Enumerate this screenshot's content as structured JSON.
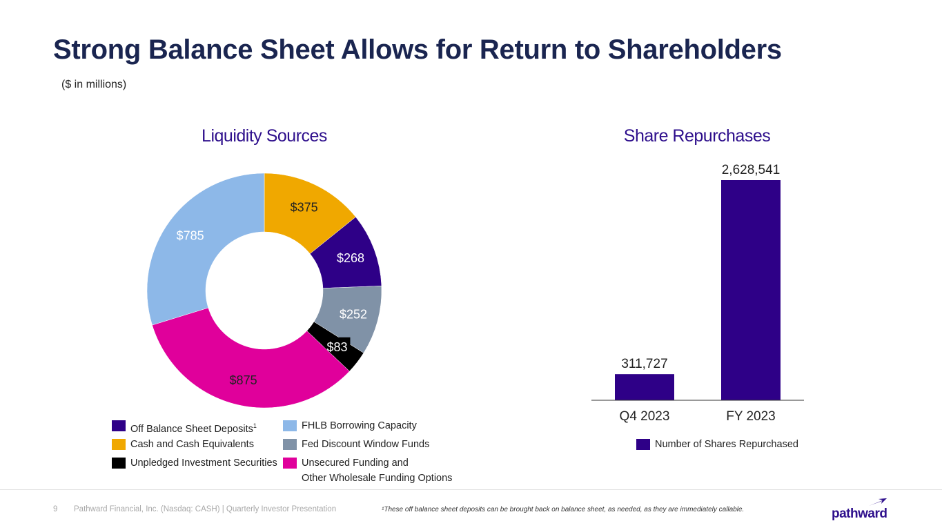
{
  "header": {
    "title": "Strong Balance Sheet Allows for Return to Shareholders",
    "subtitle": "($ in millions)"
  },
  "chart_data": [
    {
      "type": "pie",
      "variant": "donut",
      "title": "Liquidity Sources",
      "slices": [
        {
          "label": "Cash and Cash Equivalents",
          "value": 375,
          "display": "$375",
          "color": "#f0a800",
          "text_color": "#222222"
        },
        {
          "label": "Off Balance Sheet Deposits",
          "value": 268,
          "display": "$268",
          "color": "#2e0087",
          "text_color": "#ffffff"
        },
        {
          "label": "Fed Discount Window Funds",
          "value": 252,
          "display": "$252",
          "color": "#8092a7",
          "text_color": "#ffffff"
        },
        {
          "label": "Unpledged Investment Securities",
          "value": 83,
          "display": "$83",
          "color": "#000000",
          "text_color": "#ffffff"
        },
        {
          "label": "Unsecured Funding and Other Wholesale Funding Options",
          "value": 875,
          "display": "$875",
          "color": "#e0009b",
          "text_color": "#222222"
        },
        {
          "label": "FHLB Borrowing Capacity",
          "value": 785,
          "display": "$785",
          "color": "#8db8e8",
          "text_color": "#ffffff"
        }
      ],
      "legend": [
        {
          "label": "Off Balance Sheet Deposits",
          "superscript": "1",
          "color": "#2e0087"
        },
        {
          "label": "Cash and Cash Equivalents",
          "color": "#f0a800"
        },
        {
          "label": "Unpledged Investment Securities",
          "color": "#000000"
        },
        {
          "label": "FHLB Borrowing Capacity",
          "color": "#8db8e8"
        },
        {
          "label": "Fed Discount Window Funds",
          "color": "#8092a7"
        },
        {
          "label": "Unsecured Funding and",
          "label_line2": "Other Wholesale Funding Options",
          "color": "#e0009b"
        }
      ]
    },
    {
      "type": "bar",
      "title": "Share Repurchases",
      "categories": [
        "Q4 2023",
        "FY 2023"
      ],
      "series": [
        {
          "name": "Number of Shares Repurchased",
          "values": [
            311727,
            2628541
          ],
          "color": "#2e0087"
        }
      ],
      "data_labels": [
        "311,727",
        "2,628,541"
      ],
      "ylim": [
        0,
        2750000
      ],
      "grid": false
    }
  ],
  "footer": {
    "page_number": "9",
    "company": "Pathward Financial, Inc. (Nasdaq: CASH) | Quarterly Investor Presentation",
    "footnote": "¹These off balance sheet deposits can be brought back on balance sheet, as needed, as they are immediately callable.",
    "logo_text": "pathward",
    "logo_color": "#2e0f8c"
  }
}
